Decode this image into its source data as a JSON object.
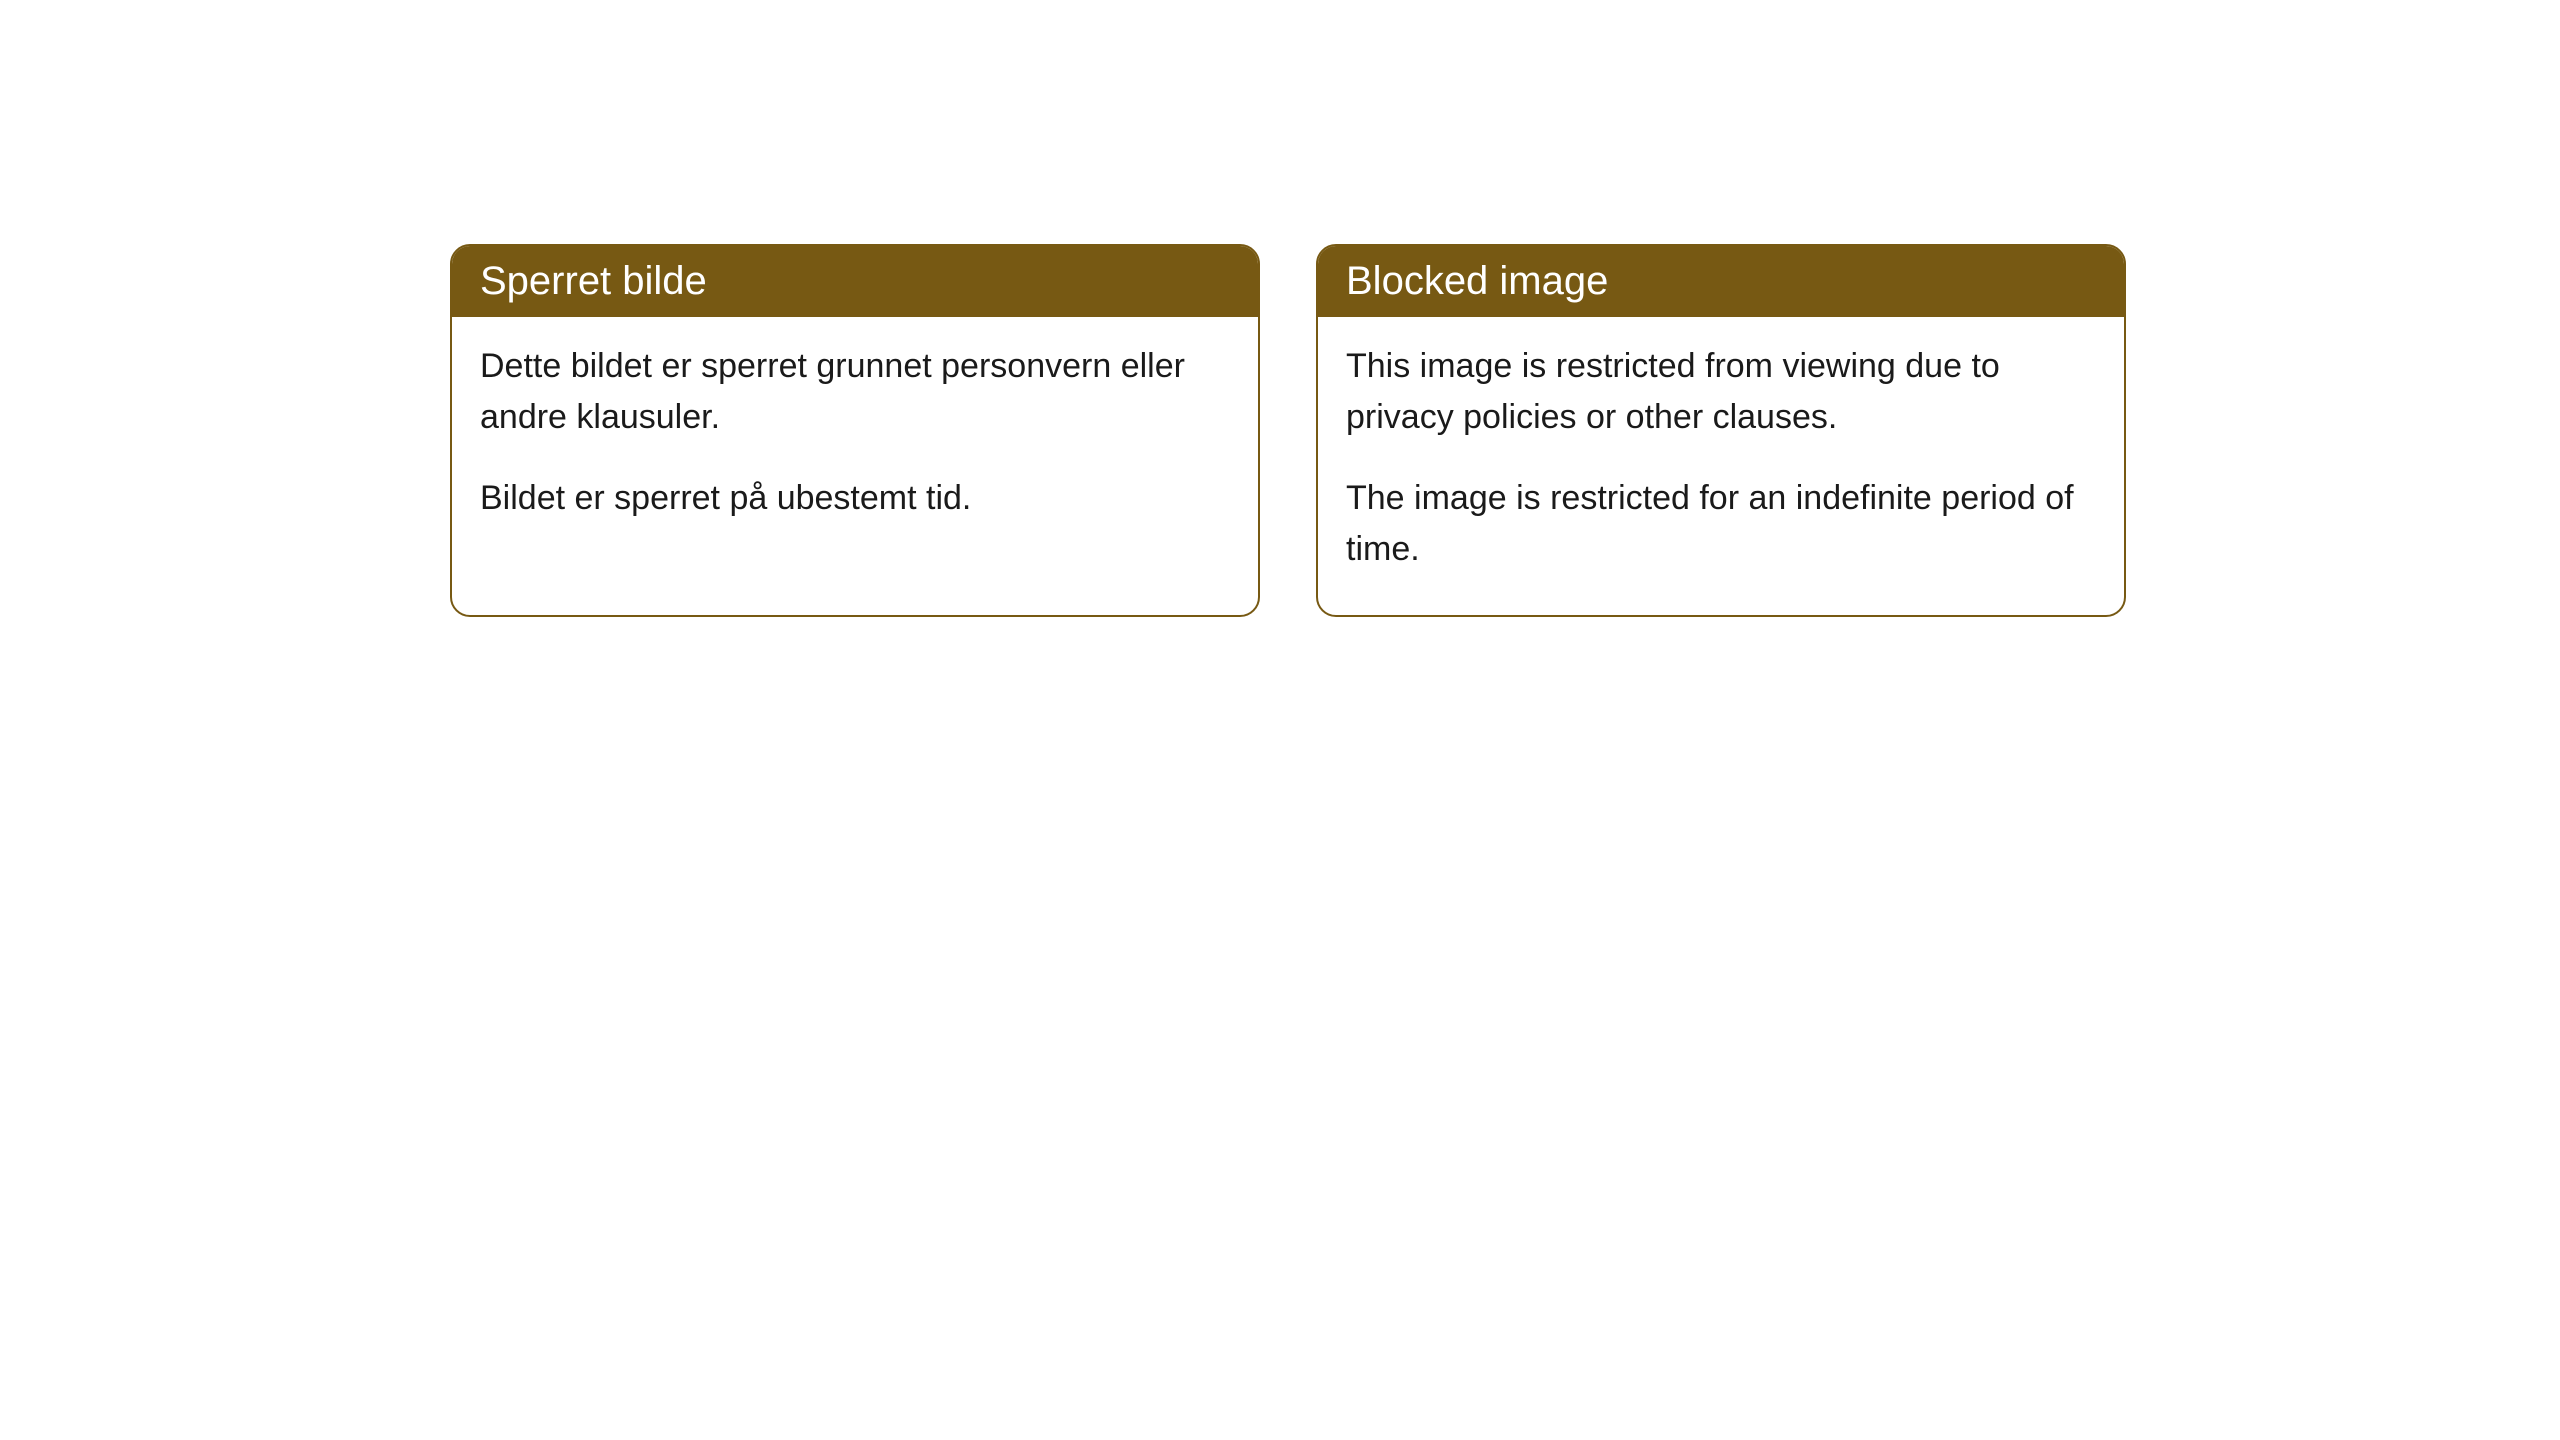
{
  "cards": [
    {
      "title": "Sperret bilde",
      "paragraph1": "Dette bildet er sperret grunnet personvern eller andre klausuler.",
      "paragraph2": "Bildet er sperret på ubestemt tid."
    },
    {
      "title": "Blocked image",
      "paragraph1": "This image is restricted from viewing due to privacy policies or other clauses.",
      "paragraph2": "The image is restricted for an indefinite period of time."
    }
  ],
  "styling": {
    "header_background_color": "#775913",
    "header_text_color": "#ffffff",
    "border_color": "#775913",
    "body_background_color": "#ffffff",
    "body_text_color": "#1a1a1a",
    "border_radius": 20,
    "header_fontsize": 40,
    "body_fontsize": 34
  }
}
